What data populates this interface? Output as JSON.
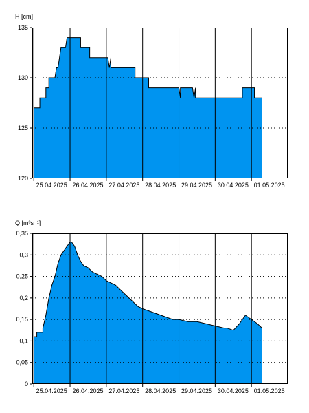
{
  "colors": {
    "fill": "#0094F0",
    "line": "#000000",
    "grid": "#000000",
    "background": "#ffffff"
  },
  "chart_data": [
    {
      "type": "area",
      "ylabel": "H [cm]",
      "ylim": [
        120,
        135
      ],
      "yticks": [
        120,
        125,
        130,
        135
      ],
      "ytick_labels": [
        "120",
        "125",
        "130",
        "135"
      ],
      "xlim": [
        "2025-04-24T23:00",
        "2025-05-02T00:00"
      ],
      "xticks": [
        "2025-04-25T00:00",
        "2025-04-26T00:00",
        "2025-04-27T00:00",
        "2025-04-28T00:00",
        "2025-04-29T00:00",
        "2025-04-30T00:00",
        "2025-05-01T00:00"
      ],
      "xtick_labels": [
        "25.04.2025",
        "26.04.2025",
        "27.04.2025",
        "28.04.2025",
        "29.04.2025",
        "30.04.2025",
        "01.05.2025"
      ],
      "grid": {
        "vertical": "solid",
        "horizontal": "dotted"
      },
      "series": [
        {
          "x": [
            "2025-04-25T00:00",
            "2025-04-25T02:00",
            "2025-04-25T02:00",
            "2025-04-25T04:00",
            "2025-04-25T04:00",
            "2025-04-25T08:00",
            "2025-04-25T08:00",
            "2025-04-25T10:00",
            "2025-04-25T10:00",
            "2025-04-25T12:00",
            "2025-04-25T12:00",
            "2025-04-25T14:00",
            "2025-04-25T15:00",
            "2025-04-25T16:00",
            "2025-04-25T18:00",
            "2025-04-25T18:00",
            "2025-04-25T21:00",
            "2025-04-25T22:00",
            "2025-04-25T22:00",
            "2025-04-26T03:00",
            "2025-04-26T03:00",
            "2025-04-26T07:00",
            "2025-04-26T07:00",
            "2025-04-26T13:00",
            "2025-04-26T13:00",
            "2025-04-26T23:00",
            "2025-04-27T00:00",
            "2025-04-27T01:00",
            "2025-04-27T02:00",
            "2025-04-27T03:00",
            "2025-04-27T03:00",
            "2025-04-27T07:00",
            "2025-04-27T07:00",
            "2025-04-27T12:00",
            "2025-04-27T12:00",
            "2025-04-27T19:00",
            "2025-04-27T19:00",
            "2025-04-28T04:00",
            "2025-04-28T04:00",
            "2025-04-28T23:00",
            "2025-04-29T00:00",
            "2025-04-29T01:00",
            "2025-04-29T01:00",
            "2025-04-29T09:00",
            "2025-04-29T09:00",
            "2025-04-29T10:00",
            "2025-04-29T11:00",
            "2025-04-29T11:00",
            "2025-04-29T12:00",
            "2025-04-29T12:00",
            "2025-04-29T23:00",
            "2025-04-30T00:00",
            "2025-04-30T07:00",
            "2025-04-30T07:00",
            "2025-04-30T18:00",
            "2025-04-30T18:00",
            "2025-05-01T02:00",
            "2025-05-01T02:00",
            "2025-05-01T07:00"
          ],
          "values": [
            127,
            127,
            127,
            127,
            128,
            128,
            129,
            129,
            130,
            130,
            130,
            130,
            131,
            131,
            133,
            133,
            133,
            134,
            134,
            134,
            134,
            134,
            133,
            133,
            132,
            132,
            132,
            132,
            131,
            132,
            131,
            131,
            131,
            131,
            131,
            131,
            130,
            130,
            129,
            129,
            129,
            128,
            129,
            129,
            129,
            128,
            129,
            128,
            128,
            128,
            128,
            128,
            128,
            128,
            128,
            129,
            129,
            128,
            128
          ]
        }
      ]
    },
    {
      "type": "area",
      "ylabel": "Q [m³s⁻¹]",
      "ylim": [
        0,
        0.35
      ],
      "yticks": [
        0,
        0.05,
        0.1,
        0.15,
        0.2,
        0.25,
        0.3,
        0.35
      ],
      "ytick_labels": [
        "0",
        "0,05",
        "0,1",
        "0,15",
        "0,2",
        "0,25",
        "0,3",
        "0,35"
      ],
      "xlim": [
        "2025-04-24T23:00",
        "2025-05-02T00:00"
      ],
      "xticks": [
        "2025-04-25T00:00",
        "2025-04-26T00:00",
        "2025-04-27T00:00",
        "2025-04-28T00:00",
        "2025-04-29T00:00",
        "2025-04-30T00:00",
        "2025-05-01T00:00"
      ],
      "xtick_labels": [
        "25.04.2025",
        "26.04.2025",
        "27.04.2025",
        "28.04.2025",
        "29.04.2025",
        "30.04.2025",
        "01.05.2025"
      ],
      "grid": {
        "vertical": "solid",
        "horizontal": "dotted"
      },
      "series": [
        {
          "x": [
            "2025-04-25T00:00",
            "2025-04-25T02:00",
            "2025-04-25T02:00",
            "2025-04-25T06:00",
            "2025-04-25T06:00",
            "2025-04-25T08:00",
            "2025-04-25T10:00",
            "2025-04-25T12:00",
            "2025-04-25T14:00",
            "2025-04-25T16:00",
            "2025-04-25T18:00",
            "2025-04-25T20:00",
            "2025-04-25T22:00",
            "2025-04-26T00:00",
            "2025-04-26T01:00",
            "2025-04-26T03:00",
            "2025-04-26T05:00",
            "2025-04-26T07:00",
            "2025-04-26T09:00",
            "2025-04-26T12:00",
            "2025-04-26T15:00",
            "2025-04-26T18:00",
            "2025-04-26T21:00",
            "2025-04-27T00:00",
            "2025-04-27T03:00",
            "2025-04-27T06:00",
            "2025-04-27T09:00",
            "2025-04-27T12:00",
            "2025-04-27T15:00",
            "2025-04-27T18:00",
            "2025-04-27T21:00",
            "2025-04-28T00:00",
            "2025-04-28T04:00",
            "2025-04-28T08:00",
            "2025-04-28T12:00",
            "2025-04-28T16:00",
            "2025-04-28T20:00",
            "2025-04-29T00:00",
            "2025-04-29T06:00",
            "2025-04-29T12:00",
            "2025-04-29T18:00",
            "2025-04-30T00:00",
            "2025-04-30T06:00",
            "2025-04-30T08:00",
            "2025-04-30T12:00",
            "2025-04-30T16:00",
            "2025-04-30T20:00",
            "2025-05-01T00:00",
            "2025-05-01T04:00",
            "2025-05-01T07:00"
          ],
          "values": [
            0.11,
            0.11,
            0.12,
            0.12,
            0.13,
            0.16,
            0.2,
            0.23,
            0.25,
            0.28,
            0.3,
            0.31,
            0.32,
            0.33,
            0.33,
            0.32,
            0.3,
            0.285,
            0.275,
            0.27,
            0.26,
            0.255,
            0.25,
            0.24,
            0.235,
            0.23,
            0.22,
            0.21,
            0.2,
            0.19,
            0.18,
            0.175,
            0.17,
            0.165,
            0.16,
            0.155,
            0.15,
            0.15,
            0.145,
            0.145,
            0.14,
            0.135,
            0.13,
            0.13,
            0.125,
            0.14,
            0.16,
            0.15,
            0.14,
            0.13
          ]
        }
      ]
    }
  ]
}
